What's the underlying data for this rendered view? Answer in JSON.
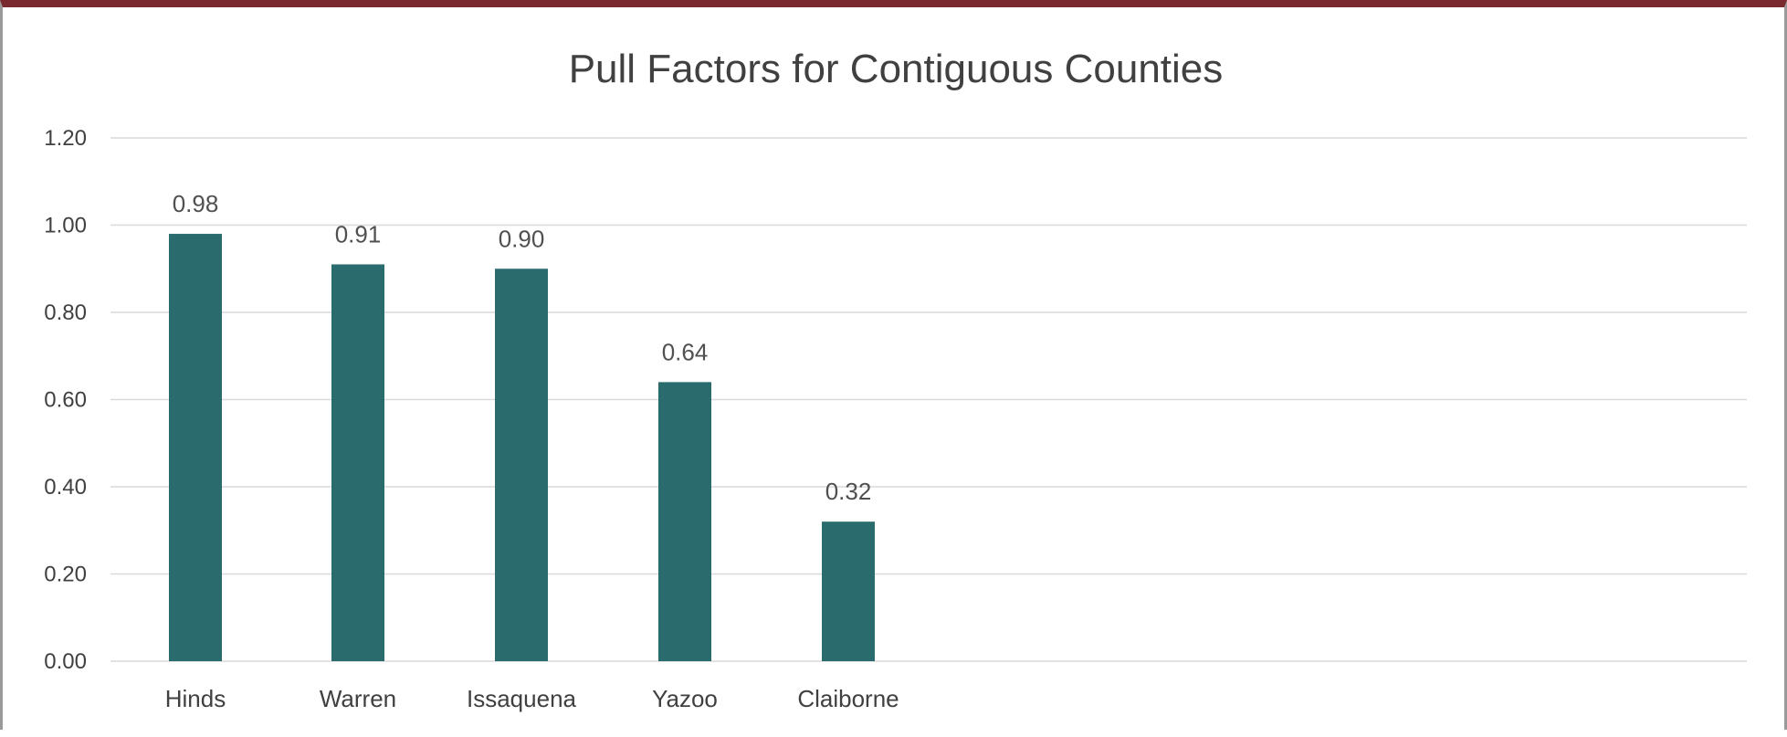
{
  "colors": {
    "bar": "#2a6b6e",
    "grid": "#d9d9d9",
    "text": "#404040",
    "frame_top": "#7a2a2e",
    "frame_side": "#9a9a9a"
  },
  "chart_data": {
    "type": "bar",
    "title": "Pull Factors for Contiguous Counties",
    "categories": [
      "Hinds",
      "Warren",
      "Issaquena",
      "Yazoo",
      "Claiborne"
    ],
    "values": [
      0.98,
      0.91,
      0.9,
      0.64,
      0.32
    ],
    "data_labels": [
      "0.98",
      "0.91",
      "0.90",
      "0.64",
      "0.32"
    ],
    "ylim": [
      0,
      1.2
    ],
    "yticks": [
      "0.00",
      "0.20",
      "0.40",
      "0.60",
      "0.80",
      "1.00",
      "1.20"
    ],
    "grid": true,
    "legend": "none"
  }
}
